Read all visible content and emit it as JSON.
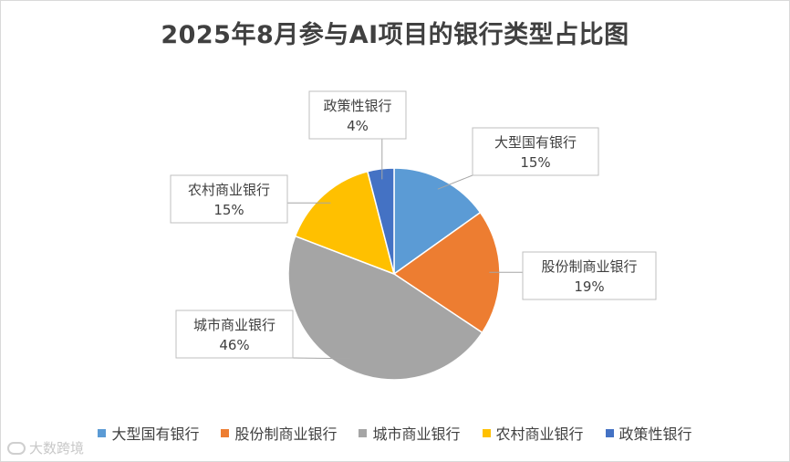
{
  "chart_data": {
    "type": "pie",
    "title": "2025年8月参与AI项目的银行类型占比图",
    "categories": [
      "大型国有银行",
      "股份制商业银行",
      "城市商业银行",
      "农村商业银行",
      "政策性银行"
    ],
    "values": [
      15,
      19,
      46,
      15,
      4
    ],
    "labels": [
      "15%",
      "19%",
      "46%",
      "15%",
      "4%"
    ],
    "colors": [
      "#5b9bd5",
      "#ed7d31",
      "#a5a5a5",
      "#ffc000",
      "#4472c4"
    ],
    "legend": "bottom"
  },
  "watermark": {
    "text": "大数跨境",
    "icon": "watermark-logo-icon"
  }
}
